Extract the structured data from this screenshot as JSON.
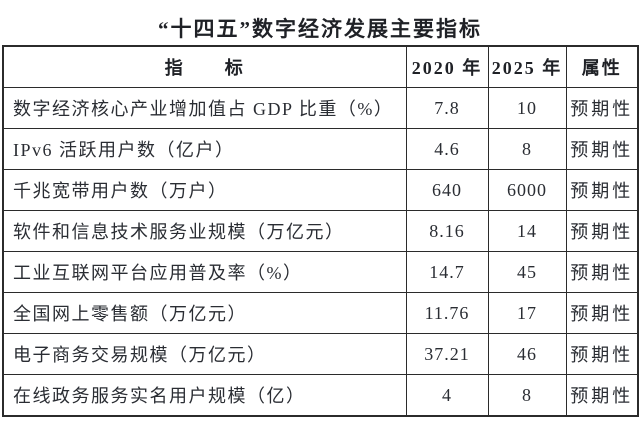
{
  "page": {
    "title": "“十四五”数字经济发展主要指标"
  },
  "table": {
    "headers": {
      "indicator": "指　　标",
      "y2020": "2020 年",
      "y2025": "2025 年",
      "attribute": "属性"
    },
    "rows": [
      {
        "indicator": "数字经济核心产业增加值占 GDP 比重（%）",
        "y2020": "7.8",
        "y2025": "10",
        "attribute": "预期性"
      },
      {
        "indicator": "IPv6 活跃用户数（亿户）",
        "y2020": "4.6",
        "y2025": "8",
        "attribute": "预期性"
      },
      {
        "indicator": "千兆宽带用户数（万户）",
        "y2020": "640",
        "y2025": "6000",
        "attribute": "预期性"
      },
      {
        "indicator": "软件和信息技术服务业规模（万亿元）",
        "y2020": "8.16",
        "y2025": "14",
        "attribute": "预期性"
      },
      {
        "indicator": "工业互联网平台应用普及率（%）",
        "y2020": "14.7",
        "y2025": "45",
        "attribute": "预期性"
      },
      {
        "indicator": "全国网上零售额（万亿元）",
        "y2020": "11.76",
        "y2025": "17",
        "attribute": "预期性"
      },
      {
        "indicator": "电子商务交易规模（万亿元）",
        "y2020": "37.21",
        "y2025": "46",
        "attribute": "预期性"
      },
      {
        "indicator": "在线政务服务实名用户规模（亿）",
        "y2020": "4",
        "y2025": "8",
        "attribute": "预期性"
      }
    ],
    "colors": {
      "border": "#2b2b2b",
      "text": "#2a2d33",
      "background": "#ffffff"
    }
  }
}
